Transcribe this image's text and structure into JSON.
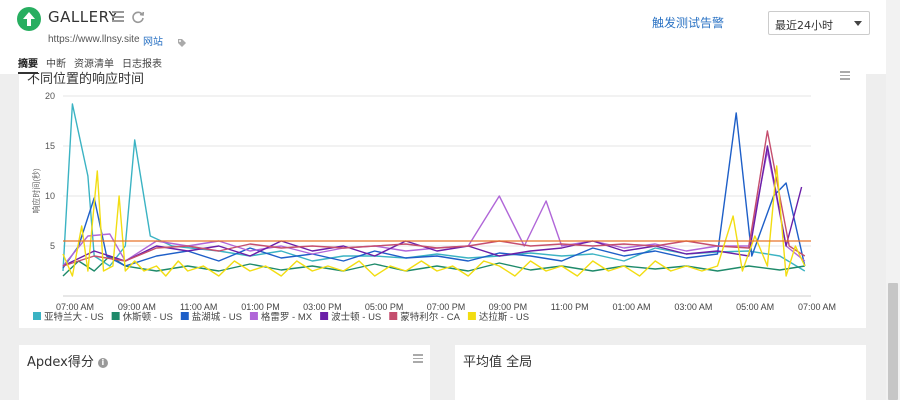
{
  "header": {
    "title": "GALLERY",
    "url": "https://www.llnsy.site",
    "url_link": "网站",
    "trigger_link": "触发测试告警",
    "time_select": "最近24小时",
    "tabs": [
      {
        "label": "摘要",
        "active": true
      },
      {
        "label": "中断",
        "active": false
      },
      {
        "label": "资源清单",
        "active": false
      },
      {
        "label": "日志报表",
        "active": false
      }
    ]
  },
  "chart_panel": {
    "title": "不同位置的响应时间"
  },
  "bottom_panels": {
    "apdex_title": "Apdex得分",
    "average_title": "平均值 全局"
  },
  "chart_data": {
    "type": "line",
    "ylabel": "响应时间(秒)",
    "xlabel": "",
    "ylim": [
      0,
      21
    ],
    "yticks": [
      5,
      10,
      15,
      20
    ],
    "xticks": [
      "07:00 AM",
      "09:00 AM",
      "11:00 AM",
      "01:00 PM",
      "03:00 PM",
      "05:00 PM",
      "07:00 PM",
      "09:00 PM",
      "11:00 PM",
      "01:00 AM",
      "03:00 AM",
      "05:00 AM",
      "07:00 AM"
    ],
    "x_range_hours": [
      0,
      24
    ],
    "threshold": {
      "value": 5.5,
      "color": "#e8742a"
    },
    "grid": true,
    "legend_position": "bottom-left",
    "series": [
      {
        "name": "亚特兰大 - US",
        "color": "#3bb3c3",
        "points": [
          [
            0,
            2.5
          ],
          [
            0.3,
            19.2
          ],
          [
            0.8,
            12
          ],
          [
            1,
            4
          ],
          [
            1.5,
            3
          ],
          [
            2,
            5
          ],
          [
            2.3,
            15.6
          ],
          [
            2.8,
            6
          ],
          [
            3.5,
            5
          ],
          [
            5,
            4.5
          ],
          [
            6,
            4
          ],
          [
            7,
            4.5
          ],
          [
            8,
            3.5
          ],
          [
            9,
            4
          ],
          [
            10,
            4
          ],
          [
            11,
            3.8
          ],
          [
            12,
            4.2
          ],
          [
            13,
            3.8
          ],
          [
            14,
            4
          ],
          [
            15,
            4.3
          ],
          [
            16,
            4
          ],
          [
            17,
            4.2
          ],
          [
            18,
            3.5
          ],
          [
            19,
            4.8
          ],
          [
            20,
            4.2
          ],
          [
            21,
            4.4
          ],
          [
            22,
            4.5
          ],
          [
            23,
            4
          ],
          [
            23.8,
            2.5
          ]
        ]
      },
      {
        "name": "休斯顿 - US",
        "color": "#1e8a6a",
        "points": [
          [
            0,
            2
          ],
          [
            0.5,
            3.5
          ],
          [
            1,
            2.5
          ],
          [
            1.5,
            4
          ],
          [
            2,
            3
          ],
          [
            3,
            2.5
          ],
          [
            4,
            3
          ],
          [
            5,
            2.5
          ],
          [
            6,
            3.2
          ],
          [
            7,
            2.6
          ],
          [
            8,
            3
          ],
          [
            9,
            2.5
          ],
          [
            10,
            3.2
          ],
          [
            11,
            2.5
          ],
          [
            12,
            3
          ],
          [
            13,
            2.5
          ],
          [
            14,
            3.3
          ],
          [
            15,
            2.6
          ],
          [
            16,
            3
          ],
          [
            17,
            2.5
          ],
          [
            18,
            3
          ],
          [
            19,
            2.7
          ],
          [
            20,
            3
          ],
          [
            21,
            2.5
          ],
          [
            22,
            3
          ],
          [
            23,
            2.6
          ],
          [
            23.8,
            3
          ]
        ]
      },
      {
        "name": "盐湖城 - US",
        "color": "#1e5fc8",
        "points": [
          [
            0,
            2.8
          ],
          [
            0.5,
            5
          ],
          [
            1,
            9.8
          ],
          [
            1.4,
            4
          ],
          [
            2,
            3
          ],
          [
            3,
            4
          ],
          [
            4,
            4.5
          ],
          [
            5,
            3.5
          ],
          [
            6,
            4.8
          ],
          [
            7,
            3.8
          ],
          [
            8,
            4.2
          ],
          [
            9,
            3.5
          ],
          [
            10,
            4.5
          ],
          [
            11,
            3.8
          ],
          [
            12,
            4
          ],
          [
            13,
            3.5
          ],
          [
            14,
            4.3
          ],
          [
            15,
            4
          ],
          [
            16,
            3.5
          ],
          [
            17,
            4.8
          ],
          [
            18,
            4
          ],
          [
            19,
            4.5
          ],
          [
            20,
            3.8
          ],
          [
            21,
            4.2
          ],
          [
            21.6,
            18.3
          ],
          [
            22.1,
            4
          ],
          [
            22.8,
            10
          ],
          [
            23.2,
            11.3
          ],
          [
            23.8,
            3
          ]
        ]
      },
      {
        "name": "格雷罗 - MX",
        "color": "#b066d8",
        "points": [
          [
            0,
            3
          ],
          [
            0.8,
            6
          ],
          [
            1.5,
            6.2
          ],
          [
            2,
            3.5
          ],
          [
            3,
            5.5
          ],
          [
            4,
            5
          ],
          [
            5,
            5.5
          ],
          [
            6,
            4.5
          ],
          [
            7,
            5
          ],
          [
            8,
            4.2
          ],
          [
            9,
            4.8
          ],
          [
            10,
            5
          ],
          [
            11,
            4.5
          ],
          [
            12,
            4.8
          ],
          [
            13,
            5
          ],
          [
            14,
            10
          ],
          [
            14.8,
            5
          ],
          [
            15.5,
            9.5
          ],
          [
            16,
            5
          ],
          [
            17,
            5.5
          ],
          [
            18,
            4.8
          ],
          [
            19,
            5.2
          ],
          [
            20,
            4.5
          ],
          [
            21,
            5
          ],
          [
            22,
            5
          ],
          [
            22.6,
            14.5
          ],
          [
            23.2,
            5
          ],
          [
            23.8,
            3.5
          ]
        ]
      },
      {
        "name": "波士顿 - US",
        "color": "#6b1fa8",
        "points": [
          [
            0,
            3
          ],
          [
            1,
            4.5
          ],
          [
            2,
            3.5
          ],
          [
            3,
            5
          ],
          [
            4,
            4.5
          ],
          [
            5,
            5
          ],
          [
            6,
            4
          ],
          [
            7,
            5.5
          ],
          [
            8,
            4.5
          ],
          [
            9,
            5
          ],
          [
            10,
            4
          ],
          [
            11,
            5.5
          ],
          [
            12,
            4.5
          ],
          [
            13,
            5
          ],
          [
            14,
            4
          ],
          [
            15,
            4.5
          ],
          [
            16,
            4.8
          ],
          [
            17,
            5.5
          ],
          [
            18,
            4.5
          ],
          [
            19,
            5
          ],
          [
            20,
            4.2
          ],
          [
            21,
            4.5
          ],
          [
            22,
            4
          ],
          [
            22.6,
            15
          ],
          [
            23.2,
            5
          ],
          [
            23.7,
            10.9
          ]
        ]
      },
      {
        "name": "蒙特利尔 - CA",
        "color": "#c54e6e",
        "points": [
          [
            0,
            3
          ],
          [
            1,
            4
          ],
          [
            2,
            3.5
          ],
          [
            3,
            4.8
          ],
          [
            4,
            5
          ],
          [
            5,
            4.5
          ],
          [
            6,
            5.2
          ],
          [
            7,
            4.8
          ],
          [
            8,
            5
          ],
          [
            9,
            4.8
          ],
          [
            10,
            5
          ],
          [
            11,
            5.2
          ],
          [
            12,
            4.8
          ],
          [
            13,
            5
          ],
          [
            14,
            5.5
          ],
          [
            15,
            5
          ],
          [
            16,
            5.2
          ],
          [
            17,
            5
          ],
          [
            18,
            5.2
          ],
          [
            19,
            5
          ],
          [
            20,
            5.5
          ],
          [
            21,
            5
          ],
          [
            22,
            4.8
          ],
          [
            22.6,
            16.5
          ],
          [
            23.3,
            5
          ],
          [
            23.8,
            4
          ]
        ]
      },
      {
        "name": "达拉斯 - US",
        "color": "#f2dd12",
        "points": [
          [
            0,
            4.2
          ],
          [
            0.3,
            2
          ],
          [
            0.6,
            7
          ],
          [
            0.8,
            2.5
          ],
          [
            1.1,
            12.5
          ],
          [
            1.3,
            2.5
          ],
          [
            1.6,
            3
          ],
          [
            1.8,
            10
          ],
          [
            2,
            2.5
          ],
          [
            2.3,
            3.5
          ],
          [
            2.6,
            2.5
          ],
          [
            3,
            3
          ],
          [
            3.3,
            2
          ],
          [
            3.7,
            3.5
          ],
          [
            4,
            2.5
          ],
          [
            4.5,
            3
          ],
          [
            5,
            2
          ],
          [
            5.5,
            3.5
          ],
          [
            6,
            2.5
          ],
          [
            6.5,
            3
          ],
          [
            7,
            2
          ],
          [
            7.5,
            3.5
          ],
          [
            8,
            2.5
          ],
          [
            8.5,
            3
          ],
          [
            9,
            2.5
          ],
          [
            9.5,
            3.5
          ],
          [
            10,
            2
          ],
          [
            10.5,
            3
          ],
          [
            11,
            2.5
          ],
          [
            11.5,
            3.5
          ],
          [
            12,
            2.5
          ],
          [
            12.5,
            3
          ],
          [
            13,
            2
          ],
          [
            13.5,
            3.5
          ],
          [
            14,
            3
          ],
          [
            14.5,
            2
          ],
          [
            15,
            3.5
          ],
          [
            15.5,
            2.5
          ],
          [
            16,
            3
          ],
          [
            16.5,
            2
          ],
          [
            17,
            3.5
          ],
          [
            17.5,
            2.5
          ],
          [
            18,
            3
          ],
          [
            18.5,
            2
          ],
          [
            19,
            3.5
          ],
          [
            19.5,
            2.5
          ],
          [
            20,
            3
          ],
          [
            20.5,
            2.5
          ],
          [
            21,
            3
          ],
          [
            21.5,
            8
          ],
          [
            21.8,
            2.5
          ],
          [
            22.2,
            6
          ],
          [
            22.6,
            3
          ],
          [
            22.9,
            13
          ],
          [
            23.2,
            2
          ],
          [
            23.5,
            5
          ],
          [
            23.8,
            3
          ]
        ]
      }
    ]
  }
}
